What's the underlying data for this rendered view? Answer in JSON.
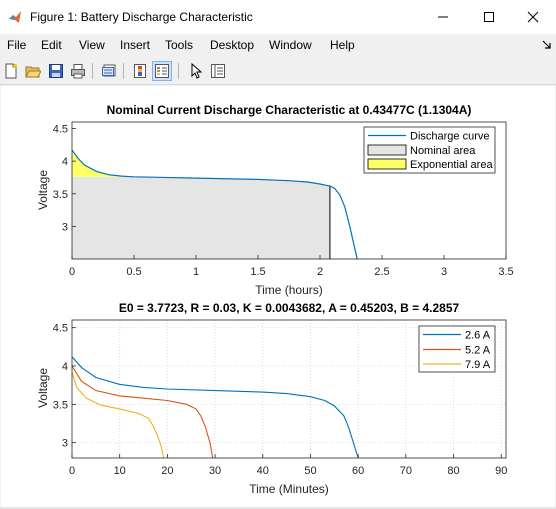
{
  "window": {
    "title": "Figure 1: Battery Discharge Characteristic"
  },
  "menu": [
    "File",
    "Edit",
    "View",
    "Insert",
    "Tools",
    "Desktop",
    "Window",
    "Help"
  ],
  "toolbar": {
    "icons": [
      "new-figure-icon",
      "open-file-icon",
      "save-icon",
      "print-icon",
      "print-preview-icon",
      "colorbar-icon",
      "legend-icon",
      "pointer-icon",
      "property-inspector-icon"
    ]
  },
  "colors": {
    "blue": "#0072bd",
    "red": "#d95319",
    "yellow": "#edb120",
    "nominal_fill": "#e5e5e5",
    "exp_fill": "#ffff66"
  },
  "chart_data": [
    {
      "type": "line",
      "title": "Nominal Current Discharge Characteristic at 0.43477C (1.1304A)",
      "xlabel": "Time (hours)",
      "ylabel": "Voltage",
      "xlim": [
        0,
        3.5
      ],
      "ylim": [
        2.5,
        4.6
      ],
      "xticks": [
        "0",
        "0.5",
        "1",
        "1.5",
        "2",
        "2.5",
        "3",
        "3.5"
      ],
      "yticks": [
        "3",
        "3.5",
        "4",
        "4.5"
      ],
      "grid": false,
      "legend_position": "top-right",
      "legend": [
        "Discharge curve",
        "Nominal area",
        "Exponential area"
      ],
      "series": [
        {
          "name": "Discharge curve",
          "x": [
            0,
            0.05,
            0.1,
            0.2,
            0.3,
            0.4,
            0.5,
            0.75,
            1.0,
            1.25,
            1.5,
            1.75,
            1.9,
            2.0,
            2.05,
            2.08,
            2.12,
            2.16,
            2.2,
            2.24,
            2.27,
            2.3
          ],
          "y": [
            4.17,
            4.04,
            3.94,
            3.84,
            3.79,
            3.77,
            3.76,
            3.75,
            3.74,
            3.73,
            3.72,
            3.7,
            3.68,
            3.65,
            3.63,
            3.62,
            3.58,
            3.48,
            3.3,
            3.0,
            2.75,
            2.5
          ]
        }
      ],
      "areas": [
        {
          "name": "Exponential area",
          "x": [
            0,
            0.05,
            0.1,
            0.2,
            0.3,
            0.4,
            0.5
          ],
          "y": [
            4.17,
            4.04,
            3.94,
            3.84,
            3.79,
            3.77,
            3.76
          ],
          "base": 3.76
        },
        {
          "name": "Nominal area",
          "x": [
            0,
            0.5,
            0.75,
            1.0,
            1.25,
            1.5,
            1.75,
            1.9,
            2.0,
            2.05,
            2.08
          ],
          "y": [
            3.76,
            3.76,
            3.75,
            3.74,
            3.73,
            3.72,
            3.7,
            3.68,
            3.65,
            3.63,
            3.62
          ],
          "base": 2.5
        }
      ]
    },
    {
      "type": "line",
      "title": "E0 = 3.7723, R = 0.03, K = 0.0043682, A = 0.45203, B = 4.2857",
      "xlabel": "Time (Minutes)",
      "ylabel": "Voltage",
      "xlim": [
        0,
        91
      ],
      "ylim": [
        2.8,
        4.6
      ],
      "xticks": [
        "0",
        "10",
        "20",
        "30",
        "40",
        "50",
        "60",
        "70",
        "80",
        "90"
      ],
      "yticks": [
        "3",
        "3.5",
        "4",
        "4.5"
      ],
      "grid": true,
      "legend_position": "top-right",
      "series": [
        {
          "name": "2.6 A",
          "x": [
            0,
            2,
            5,
            10,
            15,
            20,
            30,
            40,
            45,
            50,
            53,
            55,
            57,
            58,
            59,
            60
          ],
          "y": [
            4.12,
            3.98,
            3.85,
            3.76,
            3.72,
            3.7,
            3.68,
            3.66,
            3.64,
            3.6,
            3.55,
            3.48,
            3.35,
            3.2,
            3.0,
            2.8
          ]
        },
        {
          "name": "5.2 A",
          "x": [
            0,
            2,
            5,
            10,
            15,
            20,
            24,
            26,
            27,
            28,
            29,
            29.5
          ],
          "y": [
            4.0,
            3.8,
            3.68,
            3.61,
            3.58,
            3.55,
            3.5,
            3.44,
            3.35,
            3.2,
            2.98,
            2.8
          ]
        },
        {
          "name": "7.9 A",
          "x": [
            0,
            1,
            3,
            6,
            10,
            14,
            16,
            17,
            18,
            18.7,
            19.2
          ],
          "y": [
            3.92,
            3.72,
            3.58,
            3.49,
            3.44,
            3.38,
            3.32,
            3.22,
            3.08,
            2.95,
            2.8
          ]
        }
      ]
    }
  ]
}
